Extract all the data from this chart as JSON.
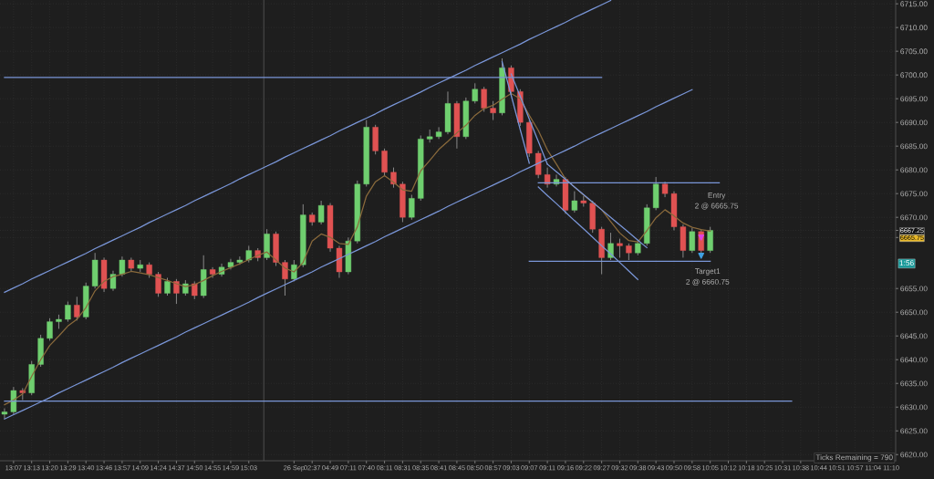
{
  "chart_data": {
    "type": "candlestick",
    "categories": [
      null,
      "13:07",
      null,
      "13:13",
      null,
      "13:20",
      null,
      "13:29",
      null,
      "13:40",
      null,
      "13:46",
      null,
      "13:57",
      null,
      "14:09",
      null,
      "14:24",
      null,
      "14:37",
      null,
      "14:50",
      null,
      "14:55",
      null,
      "14:59",
      null,
      "15:03",
      null,
      null,
      null,
      null,
      "26 Sep",
      null,
      "02:37",
      null,
      "04:49",
      null,
      "07:11",
      null,
      "07:40",
      null,
      "08:11",
      null,
      "08:31",
      null,
      "08:35",
      null,
      "08:41",
      null,
      "08:45",
      null,
      "08:50",
      null,
      "08:57",
      null,
      "09:03",
      null,
      "09:07",
      null,
      "09:11",
      null,
      "09:16",
      null,
      "09:22",
      null,
      "09:27",
      null,
      "09:32",
      null,
      "09:38",
      null,
      "09:43",
      null,
      "09:50",
      null,
      "09:58",
      null,
      "10:05",
      null,
      "10:12",
      null,
      "10:18",
      null,
      "10:25",
      null,
      "10:31",
      null,
      "10:38",
      null,
      "10:44",
      null,
      "10:51",
      null,
      "10:57",
      null,
      "11:04",
      null,
      "11:10"
    ],
    "ohlc": [
      [
        6628.5,
        6629.75,
        6627.5,
        6629.0
      ],
      [
        6629.0,
        6634.25,
        6628.5,
        6633.5
      ],
      [
        6633.5,
        6634.0,
        6631.5,
        6633.0
      ],
      [
        6633.0,
        6639.75,
        6632.5,
        6639.0
      ],
      [
        6639.0,
        6645.25,
        6638.5,
        6644.5
      ],
      [
        6644.5,
        6648.75,
        6644.0,
        6648.0
      ],
      [
        6648.0,
        6649.5,
        6646.5,
        6648.5
      ],
      [
        6648.5,
        6652.25,
        6648.0,
        6651.5
      ],
      [
        6651.5,
        6653.25,
        6648.25,
        6649.0
      ],
      [
        6649.0,
        6656.25,
        6648.5,
        6655.5
      ],
      [
        6655.5,
        6662.5,
        6655.0,
        6661.0
      ],
      [
        6661.0,
        6661.5,
        6654.25,
        6655.0
      ],
      [
        6655.0,
        6658.75,
        6654.5,
        6658.0
      ],
      [
        6658.0,
        6661.75,
        6657.5,
        6661.0
      ],
      [
        6661.0,
        6661.5,
        6658.5,
        6659.25
      ],
      [
        6659.25,
        6661.0,
        6658.5,
        6660.0
      ],
      [
        6660.0,
        6660.5,
        6657.25,
        6658.0
      ],
      [
        6658.0,
        6658.5,
        6653.25,
        6654.0
      ],
      [
        6654.0,
        6657.25,
        6653.5,
        6656.5
      ],
      [
        6656.5,
        6657.0,
        6651.75,
        6654.0
      ],
      [
        6654.0,
        6656.75,
        6653.5,
        6656.0
      ],
      [
        6656.0,
        6656.5,
        6652.75,
        6653.5
      ],
      [
        6653.5,
        6662.0,
        6653.0,
        6659.0
      ],
      [
        6659.0,
        6659.5,
        6657.25,
        6658.0
      ],
      [
        6658.0,
        6660.25,
        6657.5,
        6659.5
      ],
      [
        6659.5,
        6661.25,
        6659.0,
        6660.5
      ],
      [
        6660.5,
        6661.75,
        6660.0,
        6661.0
      ],
      [
        6661.0,
        6664.0,
        6660.5,
        6663.0
      ],
      [
        6663.0,
        6663.5,
        6660.75,
        6661.5
      ],
      [
        6661.5,
        6667.5,
        6661.0,
        6666.5
      ],
      [
        6666.5,
        6667.0,
        6659.75,
        6660.5
      ],
      [
        6660.5,
        6661.0,
        6653.5,
        6657.0
      ],
      [
        6657.0,
        6661.0,
        6656.5,
        6660.0
      ],
      [
        6660.0,
        6672.75,
        6659.5,
        6670.5
      ],
      [
        6670.5,
        6671.0,
        6668.25,
        6669.0
      ],
      [
        6669.0,
        6673.5,
        6668.5,
        6672.5
      ],
      [
        6672.5,
        6673.0,
        6662.75,
        6663.5
      ],
      [
        6663.5,
        6664.0,
        6657.25,
        6658.5
      ],
      [
        6658.5,
        6665.75,
        6658.0,
        6665.0
      ],
      [
        6665.0,
        6677.75,
        6664.5,
        6677.0
      ],
      [
        6677.0,
        6690.5,
        6676.5,
        6689.0
      ],
      [
        6689.0,
        6689.5,
        6683.25,
        6684.0
      ],
      [
        6684.0,
        6684.5,
        6678.75,
        6679.5
      ],
      [
        6679.5,
        6680.5,
        6676.25,
        6677.0
      ],
      [
        6677.0,
        6677.5,
        6669.0,
        6670.0
      ],
      [
        6670.0,
        6674.75,
        6669.5,
        6674.0
      ],
      [
        6674.0,
        6687.25,
        6673.5,
        6686.5
      ],
      [
        6686.5,
        6688.5,
        6685.75,
        6687.0
      ],
      [
        6687.0,
        6689.0,
        6686.5,
        6688.0
      ],
      [
        6688.0,
        6696.5,
        6687.5,
        6694.0
      ],
      [
        6694.0,
        6694.5,
        6684.5,
        6687.0
      ],
      [
        6687.0,
        6695.25,
        6686.5,
        6694.5
      ],
      [
        6694.5,
        6698.25,
        6694.0,
        6697.0
      ],
      [
        6697.0,
        6697.5,
        6692.25,
        6693.0
      ],
      [
        6693.0,
        6694.5,
        6690.5,
        6692.0
      ],
      [
        6692.0,
        6703.5,
        6691.5,
        6701.5
      ],
      [
        6701.5,
        6702.0,
        6695.75,
        6696.5
      ],
      [
        6696.5,
        6697.0,
        6689.25,
        6690.0
      ],
      [
        6690.0,
        6690.5,
        6682.75,
        6683.5
      ],
      [
        6683.5,
        6684.0,
        6678.25,
        6679.0
      ],
      [
        6679.0,
        6680.5,
        6676.25,
        6677.0
      ],
      [
        6677.0,
        6679.0,
        6676.5,
        6678.0
      ],
      [
        6678.0,
        6678.5,
        6670.75,
        6671.5
      ],
      [
        6671.5,
        6675.5,
        6671.0,
        6673.5
      ],
      [
        6673.5,
        6674.5,
        6672.25,
        6673.0
      ],
      [
        6673.0,
        6673.5,
        6666.75,
        6667.5
      ],
      [
        6667.5,
        6668.0,
        6658.0,
        6661.5
      ],
      [
        6661.5,
        6666.75,
        6661.0,
        6664.5
      ],
      [
        6664.5,
        6665.5,
        6661.5,
        6664.0
      ],
      [
        6664.0,
        6664.5,
        6661.0,
        6662.5
      ],
      [
        6662.5,
        6665.25,
        6662.0,
        6664.5
      ],
      [
        6664.5,
        6672.75,
        6664.0,
        6672.0
      ],
      [
        6672.0,
        6678.5,
        6671.5,
        6677.0
      ],
      [
        6677.0,
        6677.5,
        6674.25,
        6675.0
      ],
      [
        6675.0,
        6675.5,
        6667.25,
        6668.0
      ],
      [
        6668.0,
        6668.5,
        6661.5,
        6663.0
      ],
      [
        6663.0,
        6667.75,
        6662.5,
        6667.0
      ],
      [
        6667.0,
        6667.5,
        6662.25,
        6663.0
      ],
      [
        6663.0,
        6668.0,
        6662.5,
        6667.25
      ],
      null,
      null,
      null,
      null,
      null,
      null,
      null,
      null,
      null,
      null,
      null,
      null,
      null,
      null,
      null,
      null,
      null,
      null,
      null,
      null
    ],
    "colors": [
      "#6fcf6f",
      "#6fcf6f",
      "#e05252",
      "#6fcf6f",
      "#6fcf6f",
      "#6fcf6f",
      "#6fcf6f",
      "#6fcf6f",
      "#e05252",
      "#6fcf6f",
      "#6fcf6f",
      "#e05252",
      "#6fcf6f",
      "#6fcf6f",
      "#e05252",
      "#6fcf6f",
      "#e05252",
      "#e05252",
      "#6fcf6f",
      "#e05252",
      "#6fcf6f",
      "#e05252",
      "#6fcf6f",
      "#e05252",
      "#6fcf6f",
      "#6fcf6f",
      "#6fcf6f",
      "#6fcf6f",
      "#e05252",
      "#6fcf6f",
      "#e05252",
      "#e05252",
      "#6fcf6f",
      "#6fcf6f",
      "#e05252",
      "#6fcf6f",
      "#e05252",
      "#e05252",
      "#6fcf6f",
      "#6fcf6f",
      "#6fcf6f",
      "#e05252",
      "#e05252",
      "#e05252",
      "#e05252",
      "#6fcf6f",
      "#6fcf6f",
      "#6fcf6f",
      "#6fcf6f",
      "#6fcf6f",
      "#e05252",
      "#6fcf6f",
      "#6fcf6f",
      "#e05252",
      "#e05252",
      "#6fcf6f",
      "#e05252",
      "#e05252",
      "#e05252",
      "#e05252",
      "#e05252",
      "#6fcf6f",
      "#e05252",
      "#6fcf6f",
      "#e05252",
      "#e05252",
      "#e05252",
      "#6fcf6f",
      "#e05252",
      "#e05252",
      "#6fcf6f",
      "#6fcf6f",
      "#6fcf6f",
      "#e05252",
      "#e05252",
      "#e05252",
      "#6fcf6f",
      "#e05252",
      "#6fcf6f",
      null,
      null,
      null,
      null,
      null,
      null,
      null,
      null,
      null,
      null,
      null,
      null,
      null,
      null,
      null,
      null,
      null,
      null,
      null,
      null
    ],
    "series": [
      {
        "type": "line",
        "color": "#8a6a3c",
        "values": [
          6630.5,
          6631.5,
          6632.8,
          6636.5,
          6640,
          6643,
          6645,
          6647.1,
          6648.5,
          6651,
          6654.5,
          6656.5,
          6657.5,
          6658,
          6658.6,
          6658.3,
          6657.9,
          6657.3,
          6656.7,
          6656,
          6655.4,
          6655.8,
          6656.7,
          6657.7,
          6658.6,
          6659.4,
          6660.2,
          6661.1,
          6662,
          6662.7,
          6661,
          6659.3,
          6658.5,
          6660.5,
          6665,
          6666.5,
          6665.8,
          6664.5,
          6664.3,
          6668,
          6674.5,
          6677.5,
          6678.8,
          6677.4,
          6675.8,
          6675.5,
          6679.8,
          6682,
          6684.3,
          6686,
          6687.8,
          6689.4,
          6691.5,
          6692.9,
          6693.6,
          6694.9,
          6696.1,
          6695,
          6691.5,
          6688.3,
          6684.2,
          6681.2,
          6678.1,
          6676.4,
          6674.7,
          6673.1,
          6671.6,
          6669.1,
          6666.7,
          6665.1,
          6664.8,
          6667.2,
          6669.9,
          6671.6,
          6670.3,
          6668.8,
          6667.9,
          6667.4,
          6667.1,
          null,
          null,
          null,
          null,
          null,
          null,
          null,
          null,
          null,
          null,
          null,
          null,
          null,
          null,
          null,
          null,
          null,
          null,
          null,
          null
        ]
      },
      {
        "type": "line",
        "color": "#7a96d8",
        "values": [
          6654.2,
          6655.1,
          6656.0,
          6657.0,
          6657.9,
          6658.8,
          6659.7,
          6660.6,
          6661.5,
          6662.4,
          6663.4,
          6664.3,
          6665.2,
          6666.1,
          6667.0,
          6667.9,
          6668.9,
          6669.8,
          6670.7,
          6671.6,
          6672.5,
          6673.5,
          6674.4,
          6675.3,
          6676.2,
          6677.1,
          6678.1,
          6679.0,
          6679.9,
          6680.8,
          6681.7,
          6682.7,
          6683.6,
          6684.5,
          6685.4,
          6686.3,
          6687.2,
          6688.2,
          6689.1,
          6690.0,
          6690.9,
          6691.8,
          6692.8,
          6693.7,
          6694.6,
          6695.5,
          6696.4,
          6697.4,
          6698.3,
          6699.2,
          6700.1,
          6701.0,
          6702.0,
          6702.9,
          6703.8,
          6704.7,
          6705.6,
          6706.5,
          6707.5,
          6708.4,
          6709.3,
          6710.2,
          6711.1,
          6712.1,
          6713.0,
          6713.9,
          6714.8,
          6715.7,
          null,
          null,
          null,
          null,
          null,
          null,
          null,
          null,
          null,
          null,
          null,
          null,
          null,
          null,
          null,
          null,
          null,
          null,
          null,
          null,
          null,
          null,
          null,
          null,
          null,
          null,
          null,
          null,
          null,
          null,
          null
        ]
      },
      {
        "type": "line",
        "color": "#7a96d8",
        "values": [
          6627.5,
          6628.4,
          6629.3,
          6630.2,
          6631.1,
          6632.0,
          6633.0,
          6633.9,
          6634.8,
          6635.7,
          6636.6,
          6637.5,
          6638.4,
          6639.4,
          6640.3,
          6641.2,
          6642.1,
          6643.0,
          6643.9,
          6644.8,
          6645.8,
          6646.7,
          6647.6,
          6648.5,
          6649.4,
          6650.3,
          6651.2,
          6652.1,
          6653.1,
          6654.0,
          6654.9,
          6655.8,
          6656.7,
          6657.6,
          6658.5,
          6659.5,
          6660.4,
          6661.3,
          6662.2,
          6663.1,
          6664.0,
          6664.9,
          6665.9,
          6666.8,
          6667.7,
          6668.6,
          6669.5,
          6670.4,
          6671.3,
          6672.3,
          6673.2,
          6674.1,
          6675.0,
          6675.9,
          6676.8,
          6677.7,
          6678.6,
          6679.6,
          6680.5,
          6681.4,
          6682.3,
          6683.2,
          6684.1,
          6685.0,
          6686.0,
          6686.9,
          6687.8,
          6688.7,
          6689.6,
          6690.5,
          6691.4,
          6692.3,
          6693.3,
          6694.2,
          6695.1,
          6696.0,
          6696.9,
          null,
          null,
          null,
          null,
          null,
          null,
          null,
          null,
          null,
          null,
          null,
          null,
          null,
          null,
          null,
          null,
          null,
          null,
          null,
          null,
          null,
          null
        ]
      },
      {
        "type": "line",
        "color": "#7a96d8",
        "values": [
          6699.5,
          6699.5,
          6699.5,
          6699.5,
          6699.5,
          6699.5,
          6699.5,
          6699.5,
          6699.5,
          6699.5,
          6699.5,
          6699.5,
          6699.5,
          6699.5,
          6699.5,
          6699.5,
          6699.5,
          6699.5,
          6699.5,
          6699.5,
          6699.5,
          6699.5,
          6699.5,
          6699.5,
          6699.5,
          6699.5,
          6699.5,
          6699.5,
          6699.5,
          6699.5,
          6699.5,
          6699.5,
          6699.5,
          6699.5,
          6699.5,
          6699.5,
          6699.5,
          6699.5,
          6699.5,
          6699.5,
          6699.5,
          6699.5,
          6699.5,
          6699.5,
          6699.5,
          6699.5,
          6699.5,
          6699.5,
          6699.5,
          6699.5,
          6699.5,
          6699.5,
          6699.5,
          6699.5,
          6699.5,
          6699.5,
          6699.5,
          6699.5,
          6699.5,
          6699.5,
          6699.5,
          6699.5,
          6699.5,
          6699.5,
          6699.5,
          6699.5,
          6699.5,
          null,
          null,
          null,
          null,
          null,
          null,
          null,
          null,
          null,
          null,
          null,
          null,
          null,
          null,
          null,
          null,
          null,
          null,
          null,
          null,
          null,
          null,
          null,
          null,
          null,
          null,
          null,
          null,
          null,
          null,
          null,
          null
        ]
      },
      {
        "type": "line",
        "color": "#7a96d8",
        "values": [
          6631.25,
          6631.25,
          6631.25,
          6631.25,
          6631.25,
          6631.25,
          6631.25,
          6631.25,
          6631.25,
          6631.25,
          6631.25,
          6631.25,
          6631.25,
          6631.25,
          6631.25,
          6631.25,
          6631.25,
          6631.25,
          6631.25,
          6631.25,
          6631.25,
          6631.25,
          6631.25,
          6631.25,
          6631.25,
          6631.25,
          6631.25,
          6631.25,
          6631.25,
          6631.25,
          6631.25,
          6631.25,
          6631.25,
          6631.25,
          6631.25,
          6631.25,
          6631.25,
          6631.25,
          6631.25,
          6631.25,
          6631.25,
          6631.25,
          6631.25,
          6631.25,
          6631.25,
          6631.25,
          6631.25,
          6631.25,
          6631.25,
          6631.25,
          6631.25,
          6631.25,
          6631.25,
          6631.25,
          6631.25,
          6631.25,
          6631.25,
          6631.25,
          6631.25,
          6631.25,
          6631.25,
          6631.25,
          6631.25,
          6631.25,
          6631.25,
          6631.25,
          6631.25,
          6631.25,
          6631.25,
          6631.25,
          6631.25,
          6631.25,
          6631.25,
          6631.25,
          6631.25,
          6631.25,
          6631.25,
          6631.25,
          6631.25,
          6631.25,
          6631.25,
          6631.25,
          6631.25,
          6631.25,
          6631.25,
          6631.25,
          6631.25,
          6631.25,
          null,
          null,
          null,
          null,
          null,
          null,
          null,
          null,
          null,
          null,
          null
        ]
      },
      {
        "type": "line",
        "color": "#7a96d8",
        "values": [
          null,
          null,
          null,
          null,
          null,
          null,
          null,
          null,
          null,
          null,
          null,
          null,
          null,
          null,
          null,
          null,
          null,
          null,
          null,
          null,
          null,
          null,
          null,
          null,
          null,
          null,
          null,
          null,
          null,
          null,
          null,
          null,
          null,
          null,
          null,
          null,
          null,
          null,
          null,
          null,
          null,
          null,
          null,
          null,
          null,
          null,
          null,
          null,
          null,
          null,
          null,
          null,
          null,
          null,
          null,
          null,
          null,
          null,
          null,
          6677.25,
          6677.25,
          6677.25,
          6677.25,
          6677.25,
          6677.25,
          6677.25,
          6677.25,
          6677.25,
          6677.25,
          6677.25,
          6677.25,
          6677.25,
          6677.25,
          6677.25,
          6677.25,
          6677.25,
          6677.25,
          6677.25,
          6677.25,
          6677.25,
          null,
          null,
          null,
          null,
          null,
          null,
          null,
          null,
          null,
          null,
          null,
          null,
          null,
          null,
          null,
          null,
          null,
          null,
          null
        ]
      },
      {
        "type": "line",
        "color": "#7a96d8",
        "values": [
          null,
          null,
          null,
          null,
          null,
          null,
          null,
          null,
          null,
          null,
          null,
          null,
          null,
          null,
          null,
          null,
          null,
          null,
          null,
          null,
          null,
          null,
          null,
          null,
          null,
          null,
          null,
          null,
          null,
          null,
          null,
          null,
          null,
          null,
          null,
          null,
          null,
          null,
          null,
          null,
          null,
          null,
          null,
          null,
          null,
          null,
          null,
          null,
          null,
          null,
          null,
          null,
          null,
          null,
          null,
          null,
          null,
          null,
          6660.75,
          6660.75,
          6660.75,
          6660.75,
          6660.75,
          6660.75,
          6660.75,
          6660.75,
          6660.75,
          6660.75,
          6660.75,
          6660.75,
          6660.75,
          6660.75,
          6660.75,
          6660.75,
          6660.75,
          6660.75,
          6660.75,
          6660.75,
          6660.75,
          null,
          null,
          null,
          null,
          null,
          null,
          null,
          null,
          null,
          null,
          null,
          null,
          null,
          null,
          null,
          null,
          null,
          null,
          null,
          null
        ]
      },
      {
        "type": "line",
        "color": "#7a96d8",
        "values": [
          null,
          null,
          null,
          null,
          null,
          null,
          null,
          null,
          null,
          null,
          null,
          null,
          null,
          null,
          null,
          null,
          null,
          null,
          null,
          null,
          null,
          null,
          null,
          null,
          null,
          null,
          null,
          null,
          null,
          null,
          null,
          null,
          null,
          null,
          null,
          null,
          null,
          null,
          null,
          null,
          null,
          null,
          null,
          null,
          null,
          null,
          null,
          null,
          null,
          null,
          null,
          null,
          null,
          null,
          null,
          6702.8,
          6695.7,
          6688.5,
          6681.4,
          null,
          null,
          null,
          null,
          null,
          null,
          null,
          null,
          null,
          null,
          null,
          null,
          null,
          null,
          null,
          null,
          null,
          null,
          null,
          null,
          null,
          null,
          null,
          null,
          null,
          null,
          null,
          null,
          null,
          null,
          null,
          null,
          null,
          null,
          null,
          null,
          null,
          null,
          null,
          null
        ]
      },
      {
        "type": "line",
        "color": "#7a96d8",
        "values": [
          null,
          null,
          null,
          null,
          null,
          null,
          null,
          null,
          null,
          null,
          null,
          null,
          null,
          null,
          null,
          null,
          null,
          null,
          null,
          null,
          null,
          null,
          null,
          null,
          null,
          null,
          null,
          null,
          null,
          null,
          null,
          null,
          null,
          null,
          null,
          null,
          null,
          null,
          null,
          null,
          null,
          null,
          null,
          null,
          null,
          null,
          null,
          null,
          null,
          null,
          null,
          null,
          null,
          null,
          null,
          null,
          6700.2,
          6695.5,
          6690.7,
          6686.0,
          6681.2,
          null,
          null,
          null,
          null,
          null,
          null,
          null,
          null,
          null,
          null,
          null,
          null,
          null,
          null,
          null,
          null,
          null,
          null,
          null,
          null,
          null,
          null,
          null,
          null,
          null,
          null,
          null,
          null,
          null,
          null,
          null,
          null,
          null,
          null,
          null,
          null,
          null,
          null
        ]
      },
      {
        "type": "line",
        "color": "#7a96d8",
        "values": [
          null,
          null,
          null,
          null,
          null,
          null,
          null,
          null,
          null,
          null,
          null,
          null,
          null,
          null,
          null,
          null,
          null,
          null,
          null,
          null,
          null,
          null,
          null,
          null,
          null,
          null,
          null,
          null,
          null,
          null,
          null,
          null,
          null,
          null,
          null,
          null,
          null,
          null,
          null,
          null,
          null,
          null,
          null,
          null,
          null,
          null,
          null,
          null,
          null,
          null,
          null,
          null,
          null,
          null,
          null,
          null,
          null,
          null,
          null,
          6676.4,
          6674.6,
          6672.9,
          6671.1,
          6669.3,
          6667.6,
          6665.8,
          6664.0,
          6662.3,
          6660.5,
          6658.7,
          6656.9,
          null,
          null,
          null,
          null,
          null,
          null,
          null,
          null,
          null,
          null,
          null,
          null,
          null,
          null,
          null,
          null,
          null,
          null,
          null,
          null,
          null,
          null,
          null,
          null,
          null,
          null,
          null,
          null
        ]
      },
      {
        "type": "line",
        "color": "#7a96d8",
        "values": [
          null,
          null,
          null,
          null,
          null,
          null,
          null,
          null,
          null,
          null,
          null,
          null,
          null,
          null,
          null,
          null,
          null,
          null,
          null,
          null,
          null,
          null,
          null,
          null,
          null,
          null,
          null,
          null,
          null,
          null,
          null,
          null,
          null,
          null,
          null,
          null,
          null,
          null,
          null,
          null,
          null,
          null,
          null,
          null,
          null,
          null,
          null,
          null,
          null,
          null,
          null,
          null,
          null,
          null,
          null,
          null,
          null,
          null,
          null,
          null,
          6681.2,
          6679.6,
          6678.0,
          6676.4,
          6674.8,
          6673.2,
          6671.6,
          6670.0,
          6668.4,
          6666.8,
          6665.2,
          6663.6,
          null,
          null,
          null,
          null,
          null,
          null,
          null,
          null,
          null,
          null,
          null,
          null,
          null,
          null,
          null,
          null,
          null,
          null,
          null,
          null,
          null,
          null,
          null,
          null,
          null,
          null,
          null
        ]
      },
      {
        "type": "scatter",
        "marker": "triangle",
        "color": "#e040e0",
        "values": [
          null,
          null,
          null,
          null,
          null,
          null,
          null,
          null,
          null,
          null,
          null,
          null,
          null,
          null,
          null,
          null,
          null,
          null,
          null,
          null,
          null,
          null,
          null,
          null,
          null,
          null,
          null,
          null,
          null,
          null,
          null,
          null,
          null,
          null,
          null,
          null,
          null,
          null,
          null,
          null,
          null,
          null,
          null,
          null,
          null,
          null,
          null,
          null,
          null,
          null,
          null,
          null,
          null,
          null,
          null,
          null,
          null,
          null,
          null,
          null,
          null,
          null,
          null,
          null,
          null,
          null,
          null,
          null,
          null,
          null,
          null,
          null,
          null,
          null,
          null,
          null,
          null,
          6665.75,
          null,
          null,
          null,
          null,
          null,
          null,
          null,
          null,
          null,
          null,
          null,
          null,
          null,
          null,
          null,
          null,
          null,
          null,
          null,
          null,
          null
        ]
      },
      {
        "type": "scatter",
        "marker": "triangle",
        "color": "#40a0e0",
        "values": [
          null,
          null,
          null,
          null,
          null,
          null,
          null,
          null,
          null,
          null,
          null,
          null,
          null,
          null,
          null,
          null,
          null,
          null,
          null,
          null,
          null,
          null,
          null,
          null,
          null,
          null,
          null,
          null,
          null,
          null,
          null,
          null,
          null,
          null,
          null,
          null,
          null,
          null,
          null,
          null,
          null,
          null,
          null,
          null,
          null,
          null,
          null,
          null,
          null,
          null,
          null,
          null,
          null,
          null,
          null,
          null,
          null,
          null,
          null,
          null,
          null,
          null,
          null,
          null,
          null,
          null,
          null,
          null,
          null,
          null,
          null,
          null,
          null,
          null,
          null,
          null,
          null,
          6661.9,
          null,
          null,
          null,
          null,
          null,
          null,
          null,
          null,
          null,
          null,
          null,
          null,
          null,
          null,
          null,
          null,
          null,
          null,
          null,
          null,
          null
        ]
      }
    ],
    "ylim": [
      6618.7,
      6715.8
    ],
    "yticks": [
      {
        "value": 6620,
        "label": "6620.00"
      },
      {
        "value": 6625,
        "label": "6625.00"
      },
      {
        "value": 6630,
        "label": "6630.00"
      },
      {
        "value": 6635,
        "label": "6635.00"
      },
      {
        "value": 6640,
        "label": "6640.00"
      },
      {
        "value": 6645,
        "label": "6645.00"
      },
      {
        "value": 6650,
        "label": "6650.00"
      },
      {
        "value": 6655,
        "label": "6655.00"
      },
      {
        "value": 6665.75,
        "label": "6665.75"
      },
      {
        "value": 6667.25,
        "label": "6667.25"
      },
      {
        "value": 6670,
        "label": "6670.00"
      },
      {
        "value": 6675,
        "label": "6675.00"
      },
      {
        "value": 6680,
        "label": "6680.00"
      },
      {
        "value": 6685,
        "label": "6685.00"
      },
      {
        "value": 6690,
        "label": "6690.00"
      },
      {
        "value": 6695,
        "label": "6695.00"
      },
      {
        "value": 6700,
        "label": "6700.00"
      },
      {
        "value": 6705,
        "label": "6705.00"
      },
      {
        "value": 6710,
        "label": "6710.00"
      },
      {
        "value": 6715,
        "label": "6715.00"
      }
    ],
    "grid": true,
    "legend": false,
    "annotations": [
      "Entry",
      "2 @ 6665.75",
      "Target1",
      "2 @ 6660.75",
      "Ticks Remaining = 790",
      "1:56"
    ]
  }
}
